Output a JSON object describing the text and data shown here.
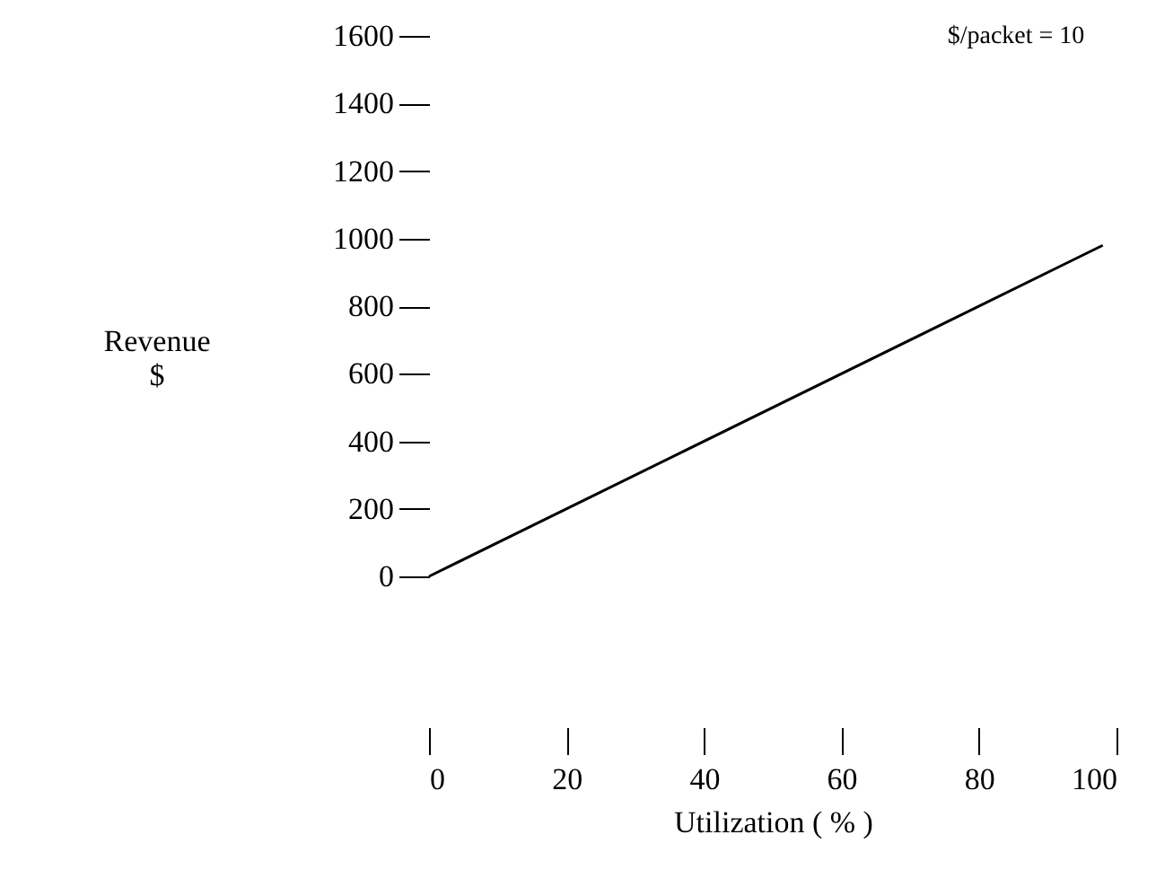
{
  "chart_data": {
    "type": "line",
    "xlabel": "Utilization ( % )",
    "ylabel": "Revenue\n$",
    "annotations": [
      "$/packet = 10"
    ],
    "x": [
      0,
      98
    ],
    "series": [
      {
        "color": "#000000",
        "values": [
          0,
          980
        ]
      }
    ],
    "xlim": [
      0,
      100
    ],
    "xticks": [
      0,
      20,
      40,
      60,
      80,
      100
    ],
    "ylim": [
      0,
      1600
    ],
    "yticks": [
      0,
      200,
      400,
      600,
      800,
      1000,
      1200,
      1400,
      1600
    ]
  }
}
